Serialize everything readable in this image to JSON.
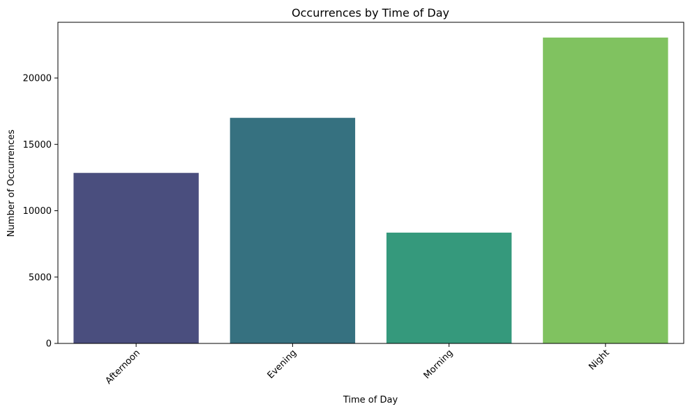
{
  "chart_data": {
    "type": "bar",
    "title": "Occurrences by Time of Day",
    "xlabel": "Time of Day",
    "ylabel": "Number of Occurrences",
    "categories": [
      "Afternoon",
      "Evening",
      "Morning",
      "Night"
    ],
    "values": [
      12850,
      17000,
      8350,
      23050
    ],
    "colors": [
      "#4a4e7e",
      "#367180",
      "#35997c",
      "#80c260"
    ],
    "ylim": [
      0,
      24200
    ],
    "yticks": [
      0,
      5000,
      10000,
      15000,
      20000
    ],
    "ytick_labels": [
      "0",
      "5000",
      "10000",
      "15000",
      "20000"
    ],
    "grid": false,
    "xtick_rotation": 45
  }
}
